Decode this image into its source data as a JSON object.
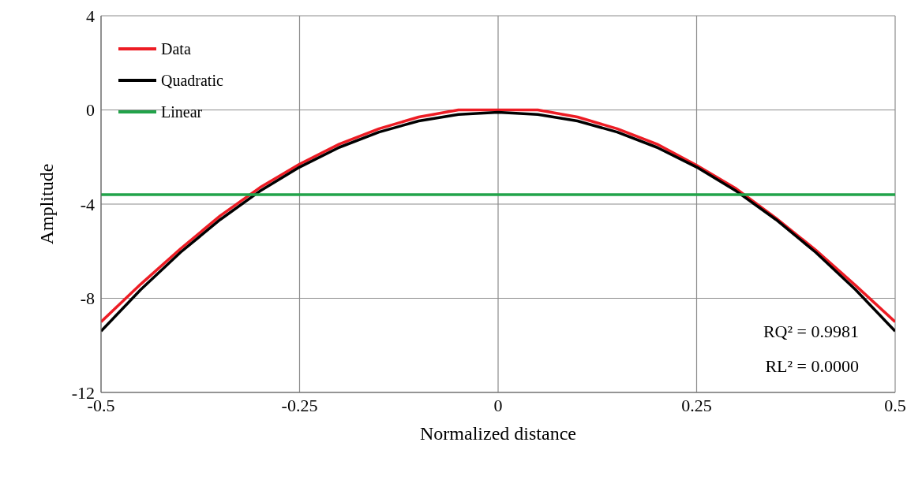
{
  "chart_data": {
    "type": "line",
    "xlabel": "Normalized distance",
    "ylabel": "Amplitude",
    "x": [
      -0.5,
      -0.45,
      -0.4,
      -0.35,
      -0.3,
      -0.25,
      -0.2,
      -0.15,
      -0.1,
      -0.05,
      0,
      0.05,
      0.1,
      0.15,
      0.2,
      0.25,
      0.3,
      0.35,
      0.4,
      0.45,
      0.5
    ],
    "series": [
      {
        "name": "Data",
        "color": "#ed1c24",
        "values": [
          -9.0,
          -7.4,
          -5.9,
          -4.5,
          -3.3,
          -2.3,
          -1.45,
          -0.8,
          -0.3,
          0,
          0,
          0,
          -0.3,
          -0.8,
          -1.45,
          -2.35,
          -3.35,
          -4.6,
          -5.95,
          -7.45,
          -9.0
        ]
      },
      {
        "name": "Quadratic",
        "color": "#000000",
        "values": [
          -9.4,
          -7.63,
          -6.05,
          -4.66,
          -3.45,
          -2.43,
          -1.59,
          -0.94,
          -0.47,
          -0.19,
          -0.1,
          -0.19,
          -0.47,
          -0.94,
          -1.59,
          -2.43,
          -3.45,
          -4.66,
          -6.05,
          -7.63,
          -9.4
        ]
      },
      {
        "name": "Linear",
        "color": "#22a34a",
        "values": [
          -3.6,
          -3.6,
          -3.6,
          -3.6,
          -3.6,
          -3.6,
          -3.6,
          -3.6,
          -3.6,
          -3.6,
          -3.6,
          -3.6,
          -3.6,
          -3.6,
          -3.6,
          -3.6,
          -3.6,
          -3.6,
          -3.6,
          -3.6,
          -3.6
        ]
      }
    ],
    "xlim": [
      -0.5,
      0.5
    ],
    "xticks": [
      -0.5,
      -0.25,
      0,
      0.25,
      0.5
    ],
    "ylim": [
      -12,
      4
    ],
    "yticks": [
      -12,
      -8,
      -4,
      0,
      4
    ],
    "grid": true,
    "legend": "top left",
    "marker": "none",
    "line_style": "solid",
    "annotations": [
      "RQ² = 0.9981",
      "RL² = 0.0000"
    ]
  }
}
